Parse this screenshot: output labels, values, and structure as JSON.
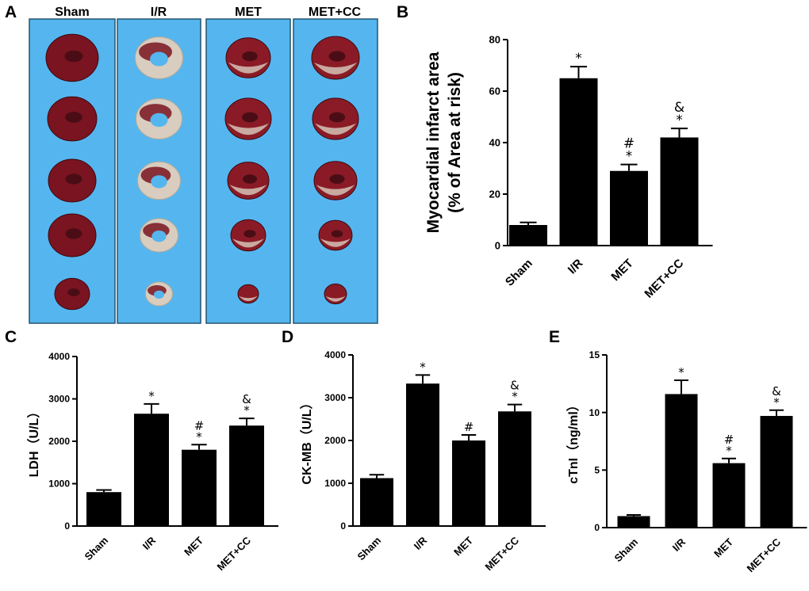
{
  "panels": {
    "A": {
      "letter": "A",
      "groups": [
        "Sham",
        "I/R",
        "MET",
        "MET+CC"
      ]
    },
    "B": {
      "letter": "B"
    },
    "C": {
      "letter": "C"
    },
    "D": {
      "letter": "D"
    },
    "E": {
      "letter": "E"
    }
  },
  "colors": {
    "bar": "#000000",
    "slide_bg": "#55b6ef",
    "tissue_red": "#7a1420",
    "tissue_pale": "#d8cdbf"
  },
  "chart_data": [
    {
      "id": "B",
      "type": "bar",
      "categories": [
        "Sham",
        "I/R",
        "MET",
        "MET+CC"
      ],
      "values": [
        8,
        65,
        29,
        42
      ],
      "errors": [
        1,
        4.5,
        2.5,
        3.5
      ],
      "annotations": [
        [],
        [
          "*"
        ],
        [
          "#",
          "*"
        ],
        [
          "&",
          "*"
        ]
      ],
      "ylabel": [
        "Myocardial infarct area",
        "(% of Area at risk)"
      ],
      "ylim": [
        0,
        80
      ],
      "yticks": [
        0,
        20,
        40,
        60,
        80
      ],
      "ytick_labels": [
        "0",
        "20",
        "40",
        "60",
        "80"
      ]
    },
    {
      "id": "C",
      "type": "bar",
      "categories": [
        "Sham",
        "I/R",
        "MET",
        "MET+CC"
      ],
      "values": [
        800,
        2650,
        1800,
        2370
      ],
      "errors": [
        50,
        230,
        120,
        170
      ],
      "annotations": [
        [],
        [
          "*"
        ],
        [
          "#",
          "*"
        ],
        [
          "&",
          "*"
        ]
      ],
      "ylabel": [
        "LDH（U/L）"
      ],
      "ylim": [
        0,
        4000
      ],
      "yticks": [
        0,
        1000,
        2000,
        3000,
        4000
      ],
      "ytick_labels": [
        "0",
        "1000",
        "2000",
        "3000",
        "4000"
      ]
    },
    {
      "id": "D",
      "type": "bar",
      "categories": [
        "Sham",
        "I/R",
        "MET",
        "MET+CC"
      ],
      "values": [
        1120,
        3330,
        2000,
        2680
      ],
      "errors": [
        80,
        200,
        130,
        160
      ],
      "annotations": [
        [],
        [
          "*"
        ],
        [
          "#"
        ],
        [
          "&",
          "*"
        ]
      ],
      "ylabel": [
        "CK-MB（U/L）"
      ],
      "ylim": [
        0,
        4000
      ],
      "yticks": [
        0,
        1000,
        2000,
        3000,
        4000
      ],
      "ytick_labels": [
        "0",
        "1000",
        "2000",
        "3000",
        "4000"
      ]
    },
    {
      "id": "E",
      "type": "bar",
      "categories": [
        "Sham",
        "I/R",
        "MET",
        "MET+CC"
      ],
      "values": [
        1.0,
        11.6,
        5.6,
        9.7
      ],
      "errors": [
        0.1,
        1.2,
        0.4,
        0.5
      ],
      "annotations": [
        [],
        [
          "*"
        ],
        [
          "#",
          "*"
        ],
        [
          "&",
          "*"
        ]
      ],
      "ylabel": [
        "cTnI（ng/ml）"
      ],
      "ylim": [
        0,
        15
      ],
      "yticks": [
        0,
        5,
        10,
        15
      ],
      "ytick_labels": [
        "0",
        "5",
        "10",
        "15"
      ]
    }
  ]
}
